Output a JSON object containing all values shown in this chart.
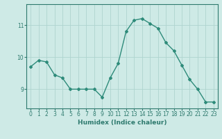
{
  "x": [
    0,
    1,
    2,
    3,
    4,
    5,
    6,
    7,
    8,
    9,
    10,
    11,
    12,
    13,
    14,
    15,
    16,
    17,
    18,
    19,
    20,
    21,
    22,
    23
  ],
  "y": [
    9.7,
    9.9,
    9.85,
    9.45,
    9.35,
    9.0,
    9.0,
    9.0,
    9.0,
    8.75,
    9.35,
    9.8,
    10.8,
    11.15,
    11.2,
    11.05,
    10.9,
    10.45,
    10.2,
    9.75,
    9.3,
    9.0,
    8.6,
    8.6
  ],
  "line_color": "#2e8b7a",
  "marker": "D",
  "marker_size": 2.0,
  "bg_color": "#ceeae6",
  "grid_color": "#aed4cf",
  "xlabel": "Humidex (Indice chaleur)",
  "yticks": [
    9,
    10,
    11
  ],
  "xtick_labels": [
    "0",
    "1",
    "2",
    "3",
    "4",
    "5",
    "6",
    "7",
    "8",
    "9",
    "10",
    "11",
    "12",
    "13",
    "14",
    "15",
    "16",
    "17",
    "18",
    "19",
    "20",
    "21",
    "22",
    "23"
  ],
  "ylim": [
    8.4,
    11.65
  ],
  "xlim": [
    -0.5,
    23.5
  ],
  "linewidth": 1.0,
  "label_fontsize": 6.5,
  "tick_fontsize": 5.5,
  "axis_color": "#2e7a6e"
}
